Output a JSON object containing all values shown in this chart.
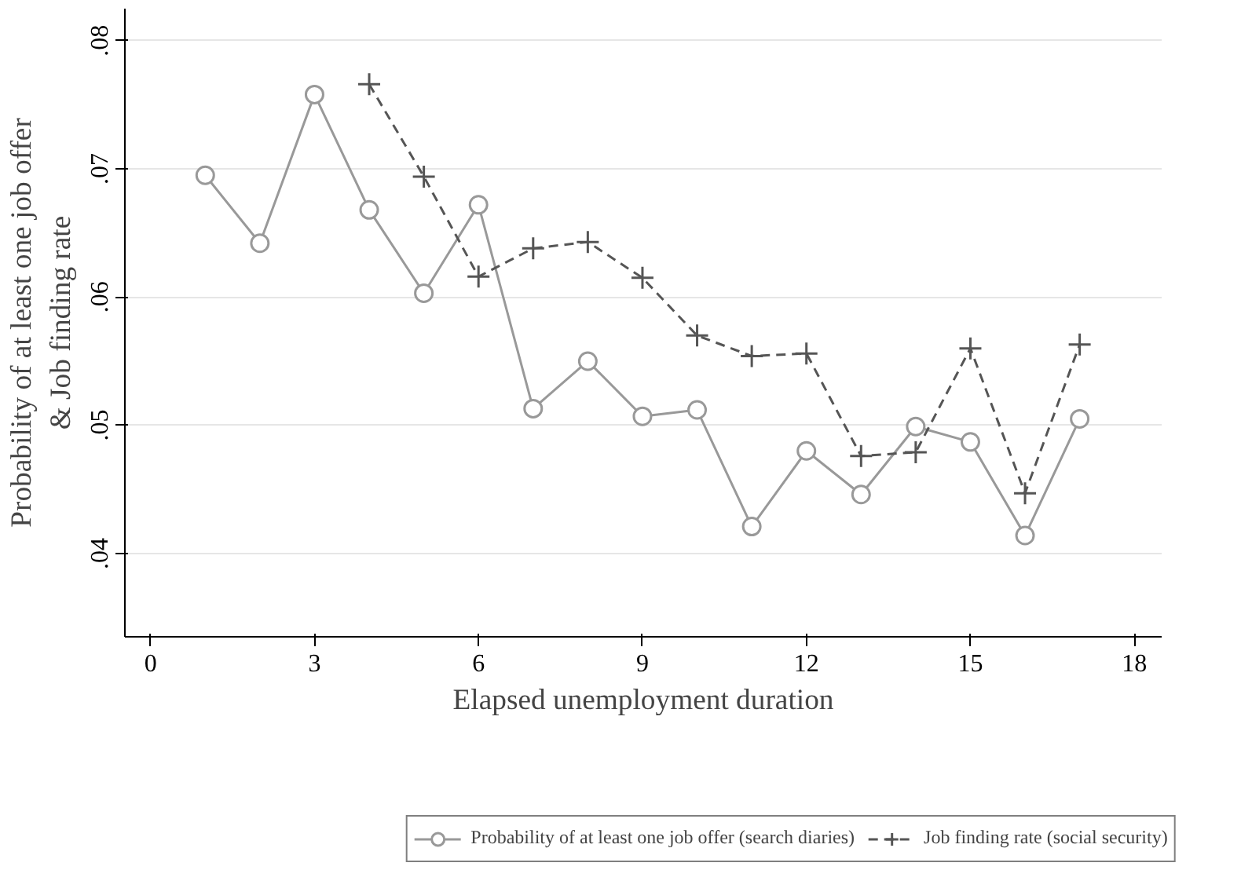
{
  "chart_data": {
    "type": "line",
    "xlabel": "Elapsed unemployment duration",
    "ylabel": "Probability of at least one job offer\n& Job finding rate",
    "xlim": [
      -0.47,
      18.5
    ],
    "xticks": [
      0,
      3,
      6,
      9,
      12,
      15,
      18
    ],
    "ylim": [
      0.0335,
      0.0825
    ],
    "yticks": [
      {
        "value": 0.04,
        "label": ".04"
      },
      {
        "value": 0.05,
        "label": ".05"
      },
      {
        "value": 0.06,
        "label": ".06"
      },
      {
        "value": 0.07,
        "label": ".07"
      },
      {
        "value": 0.08,
        "label": ".08"
      }
    ],
    "grid": "y",
    "legend": "bottom",
    "series": [
      {
        "name": "Probability of at least one job offer (search diaries)",
        "color": "#999999",
        "marker": "circle",
        "line_style": "solid",
        "x": [
          1,
          2,
          3,
          4,
          5,
          6,
          7,
          8,
          9,
          10,
          11,
          12,
          13,
          14,
          15,
          16,
          17
        ],
        "values": [
          0.0695,
          0.0642,
          0.0758,
          0.0668,
          0.0603,
          0.0672,
          0.0513,
          0.055,
          0.0507,
          0.0512,
          0.0421,
          0.048,
          0.0446,
          0.0499,
          0.0487,
          0.0414,
          0.0505
        ]
      },
      {
        "name": "Job finding rate (social security)",
        "color": "#555555",
        "marker": "cross",
        "line_style": "dashed",
        "x": [
          4,
          5,
          6,
          7,
          8,
          9,
          10,
          11,
          12,
          13,
          14,
          15,
          16,
          17
        ],
        "values": [
          0.0766,
          0.0694,
          0.0616,
          0.0638,
          0.0643,
          0.0615,
          0.057,
          0.0554,
          0.0556,
          0.0476,
          0.0479,
          0.056,
          0.0447,
          0.0563
        ]
      }
    ]
  }
}
